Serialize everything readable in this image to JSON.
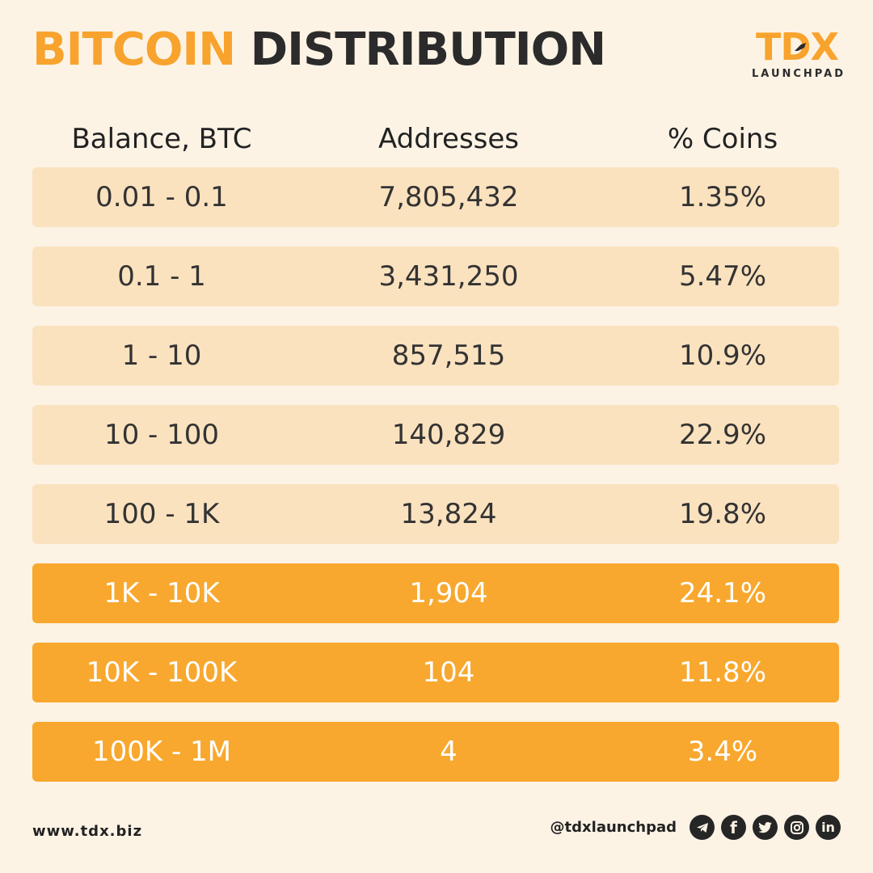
{
  "title": {
    "accent": "BITCOIN",
    "rest": "DISTRIBUTION"
  },
  "logo": {
    "mark": "TDX",
    "sub": "LAUNCHPAD"
  },
  "table": {
    "headers": [
      "Balance, BTC",
      "Addresses",
      "% Coins"
    ],
    "rows": [
      {
        "balance": "0.01 - 0.1",
        "addresses": "7,805,432",
        "coins": "1.35%"
      },
      {
        "balance": "0.1 - 1",
        "addresses": "3,431,250",
        "coins": "5.47%"
      },
      {
        "balance": "1 - 10",
        "addresses": "857,515",
        "coins": "10.9%"
      },
      {
        "balance": "10 - 100",
        "addresses": "140,829",
        "coins": "22.9%"
      },
      {
        "balance": "100 - 1K",
        "addresses": "13,824",
        "coins": "19.8%"
      },
      {
        "balance": "1K - 10K",
        "addresses": "1,904",
        "coins": "24.1%"
      },
      {
        "balance": "10K - 100K",
        "addresses": "104",
        "coins": "11.8%"
      },
      {
        "balance": "100K - 1M",
        "addresses": "4",
        "coins": "3.4%"
      }
    ]
  },
  "footer": {
    "website": "www.tdx.biz",
    "handle": "@tdxlaunchpad",
    "social_icons": [
      "telegram-icon",
      "facebook-icon",
      "twitter-icon",
      "instagram-icon",
      "linkedin-icon"
    ],
    "linkedin_text": "in",
    "facebook_text": "f"
  },
  "colors": {
    "accent": "#f8a32d",
    "background": "#fcf3e5",
    "row_light": "#fbe2bf",
    "row_dark": "#f8a82e",
    "text": "#2b2b2b"
  }
}
